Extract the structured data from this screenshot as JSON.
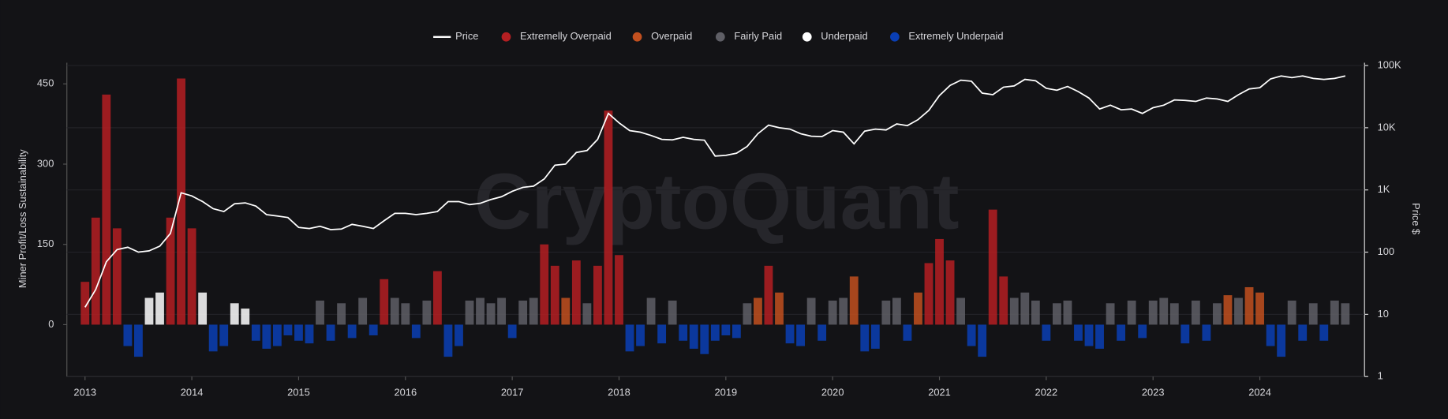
{
  "chart_data": {
    "type": "combo",
    "watermark": "CryptoQuant",
    "x_label": null,
    "ylabel": "Miner Profit/Loss Sustainability",
    "y2label": "Price $",
    "xlim": [
      2012.83,
      2024.98
    ],
    "xticks": [
      2013,
      2014,
      2015,
      2016,
      2017,
      2018,
      2019,
      2020,
      2021,
      2022,
      2023,
      2024
    ],
    "ylim": [
      -97,
      486
    ],
    "yticks": [
      0,
      150,
      300,
      450
    ],
    "y2lim": [
      1,
      100000
    ],
    "y2log": true,
    "y2ticks": [
      1,
      10,
      100,
      {
        "value": 1000,
        "label": "1K"
      },
      {
        "value": 10000,
        "label": "10K"
      },
      {
        "value": 100000,
        "label": "100K"
      }
    ],
    "grid": true,
    "legend": "top",
    "x": [
      2013.0,
      2013.1,
      2013.2,
      2013.3,
      2013.4,
      2013.5,
      2013.6,
      2013.7,
      2013.8,
      2013.9,
      2014.0,
      2014.1,
      2014.2,
      2014.3,
      2014.4,
      2014.5,
      2014.6,
      2014.7,
      2014.8,
      2014.9,
      2015.0,
      2015.1,
      2015.2,
      2015.3,
      2015.4,
      2015.5,
      2015.6,
      2015.7,
      2015.8,
      2015.9,
      2016.0,
      2016.1,
      2016.2,
      2016.3,
      2016.4,
      2016.5,
      2016.6,
      2016.7,
      2016.8,
      2016.9,
      2017.0,
      2017.1,
      2017.2,
      2017.3,
      2017.4,
      2017.5,
      2017.6,
      2017.7,
      2017.8,
      2017.9,
      2018.0,
      2018.1,
      2018.2,
      2018.3,
      2018.4,
      2018.5,
      2018.6,
      2018.7,
      2018.8,
      2018.9,
      2019.0,
      2019.1,
      2019.2,
      2019.3,
      2019.4,
      2019.5,
      2019.6,
      2019.7,
      2019.8,
      2019.9,
      2020.0,
      2020.1,
      2020.2,
      2020.3,
      2020.4,
      2020.5,
      2020.6,
      2020.7,
      2020.8,
      2020.9,
      2021.0,
      2021.1,
      2021.2,
      2021.3,
      2021.4,
      2021.5,
      2021.6,
      2021.7,
      2021.8,
      2021.9,
      2022.0,
      2022.1,
      2022.2,
      2022.3,
      2022.4,
      2022.5,
      2022.6,
      2022.7,
      2022.8,
      2022.9,
      2023.0,
      2023.1,
      2023.2,
      2023.3,
      2023.4,
      2023.5,
      2023.6,
      2023.7,
      2023.8,
      2023.9,
      2024.0,
      2024.1,
      2024.2,
      2024.3,
      2024.4,
      2024.5,
      2024.6,
      2024.7,
      2024.8
    ],
    "series": [
      {
        "name": "Price",
        "type": "line",
        "axis": "y2",
        "color": "#ffffff",
        "values": [
          13,
          25,
          70,
          110,
          120,
          100,
          105,
          125,
          200,
          900,
          800,
          650,
          500,
          450,
          600,
          620,
          550,
          400,
          380,
          360,
          250,
          240,
          260,
          230,
          235,
          280,
          260,
          240,
          320,
          420,
          420,
          400,
          420,
          450,
          650,
          650,
          580,
          610,
          700,
          780,
          950,
          1100,
          1150,
          1500,
          2500,
          2600,
          4000,
          4300,
          6500,
          17000,
          12000,
          9000,
          8500,
          7500,
          6500,
          6400,
          7000,
          6500,
          6300,
          3500,
          3600,
          3900,
          5000,
          8000,
          11000,
          10000,
          9500,
          8000,
          7300,
          7200,
          9000,
          8500,
          5500,
          8800,
          9500,
          9200,
          11500,
          10800,
          13500,
          19000,
          33000,
          48000,
          58000,
          56000,
          36000,
          34000,
          45000,
          47000,
          60000,
          57000,
          43000,
          40000,
          46000,
          38000,
          30000,
          20000,
          23000,
          19500,
          20000,
          17000,
          21000,
          23000,
          28000,
          27500,
          26500,
          30000,
          29000,
          26500,
          34000,
          42000,
          44000,
          61000,
          68000,
          64000,
          68000,
          62000,
          60000,
          62000,
          68000
        ]
      },
      {
        "name": "Extremelly Overpaid",
        "type": "bar",
        "color": "#b51f22",
        "values": [
          80,
          200,
          430,
          180,
          null,
          null,
          null,
          null,
          200,
          460,
          180,
          null,
          null,
          null,
          null,
          null,
          null,
          null,
          null,
          null,
          null,
          null,
          null,
          null,
          null,
          null,
          null,
          null,
          85,
          null,
          null,
          null,
          null,
          100,
          null,
          null,
          null,
          null,
          null,
          null,
          null,
          null,
          null,
          150,
          110,
          null,
          120,
          null,
          110,
          400,
          130,
          null,
          null,
          null,
          null,
          null,
          null,
          null,
          null,
          null,
          null,
          null,
          null,
          null,
          110,
          null,
          null,
          null,
          null,
          null,
          null,
          null,
          null,
          null,
          null,
          null,
          null,
          null,
          null,
          115,
          160,
          120,
          null,
          null,
          null,
          215,
          90,
          null,
          null,
          null,
          null,
          null,
          null,
          null,
          null,
          null,
          null,
          null,
          null,
          null,
          null,
          null,
          null,
          null,
          null,
          null,
          null,
          null,
          null,
          null,
          null,
          null,
          null,
          null,
          null,
          null,
          null,
          null,
          null
        ]
      },
      {
        "name": "Overpaid",
        "type": "bar",
        "color": "#c2501f",
        "values": [
          null,
          null,
          null,
          null,
          null,
          null,
          null,
          null,
          null,
          null,
          null,
          null,
          null,
          null,
          null,
          null,
          null,
          null,
          null,
          null,
          null,
          null,
          null,
          null,
          null,
          null,
          null,
          null,
          null,
          null,
          null,
          null,
          null,
          null,
          null,
          null,
          null,
          null,
          null,
          null,
          null,
          null,
          null,
          null,
          null,
          50,
          null,
          null,
          null,
          null,
          null,
          null,
          null,
          null,
          null,
          null,
          null,
          null,
          null,
          null,
          null,
          null,
          null,
          50,
          null,
          60,
          null,
          null,
          null,
          null,
          null,
          null,
          90,
          null,
          null,
          null,
          null,
          null,
          60,
          null,
          null,
          null,
          null,
          null,
          null,
          null,
          null,
          null,
          null,
          null,
          null,
          null,
          null,
          null,
          null,
          null,
          null,
          null,
          null,
          null,
          null,
          null,
          null,
          null,
          null,
          null,
          null,
          55,
          null,
          70,
          60,
          null,
          null,
          null,
          null,
          null,
          null,
          null,
          null
        ]
      },
      {
        "name": "Fairly Paid",
        "type": "bar",
        "color": "#5f5f66",
        "values": [
          null,
          null,
          null,
          null,
          null,
          null,
          null,
          null,
          null,
          null,
          null,
          null,
          null,
          null,
          null,
          null,
          null,
          null,
          null,
          null,
          null,
          null,
          45,
          null,
          40,
          null,
          50,
          null,
          null,
          50,
          40,
          null,
          45,
          null,
          null,
          null,
          45,
          50,
          40,
          50,
          null,
          45,
          50,
          null,
          null,
          null,
          null,
          40,
          null,
          null,
          null,
          null,
          null,
          50,
          null,
          45,
          null,
          null,
          null,
          null,
          null,
          null,
          40,
          null,
          null,
          null,
          null,
          null,
          50,
          null,
          45,
          50,
          null,
          null,
          null,
          45,
          50,
          null,
          null,
          null,
          null,
          null,
          50,
          null,
          null,
          null,
          null,
          50,
          60,
          45,
          null,
          40,
          45,
          null,
          null,
          null,
          40,
          null,
          45,
          null,
          45,
          50,
          40,
          null,
          45,
          null,
          40,
          null,
          50,
          null,
          null,
          null,
          null,
          45,
          null,
          40,
          null,
          45,
          40
        ]
      },
      {
        "name": "Underpaid",
        "type": "bar",
        "color": "#ffffff",
        "values": [
          null,
          null,
          null,
          null,
          null,
          null,
          50,
          60,
          null,
          null,
          null,
          60,
          null,
          null,
          40,
          30,
          null,
          null,
          null,
          null,
          null,
          null,
          null,
          null,
          null,
          null,
          null,
          null,
          null,
          null,
          null,
          null,
          null,
          null,
          null,
          null,
          null,
          null,
          null,
          null,
          null,
          null,
          null,
          null,
          null,
          null,
          null,
          null,
          null,
          null,
          null,
          null,
          null,
          null,
          null,
          null,
          null,
          null,
          null,
          null,
          null,
          null,
          null,
          null,
          null,
          null,
          null,
          null,
          null,
          null,
          null,
          null,
          null,
          null,
          null,
          null,
          null,
          null,
          null,
          null,
          null,
          null,
          null,
          null,
          null,
          null,
          null,
          null,
          null,
          null,
          null,
          null,
          null,
          null,
          null,
          null,
          null,
          null,
          null,
          null,
          null,
          null,
          null,
          null,
          null,
          null,
          null,
          null,
          null,
          null,
          null,
          null,
          null,
          null,
          null,
          null,
          null,
          null,
          null
        ]
      },
      {
        "name": "Extremely Underpaid",
        "type": "bar",
        "color": "#0a3fb5",
        "values": [
          null,
          null,
          null,
          null,
          -40,
          -60,
          null,
          null,
          null,
          null,
          null,
          null,
          -50,
          -40,
          null,
          null,
          -30,
          -45,
          -40,
          -20,
          -30,
          -35,
          null,
          -30,
          null,
          -25,
          null,
          -20,
          null,
          null,
          null,
          -25,
          null,
          null,
          -60,
          -40,
          null,
          null,
          null,
          null,
          -25,
          null,
          null,
          null,
          null,
          null,
          null,
          null,
          null,
          null,
          null,
          -50,
          -40,
          null,
          -35,
          null,
          -30,
          -45,
          -55,
          -30,
          -20,
          -25,
          null,
          null,
          null,
          null,
          -35,
          -40,
          null,
          -30,
          null,
          null,
          null,
          -50,
          -45,
          null,
          null,
          -30,
          null,
          null,
          null,
          null,
          null,
          -40,
          -60,
          null,
          null,
          null,
          null,
          null,
          -30,
          null,
          null,
          -30,
          -40,
          -45,
          null,
          -30,
          null,
          -25,
          null,
          null,
          null,
          -35,
          null,
          -30,
          null,
          null,
          null,
          null,
          null,
          -40,
          -60,
          null,
          -30,
          null,
          -30,
          null,
          null
        ]
      }
    ]
  }
}
